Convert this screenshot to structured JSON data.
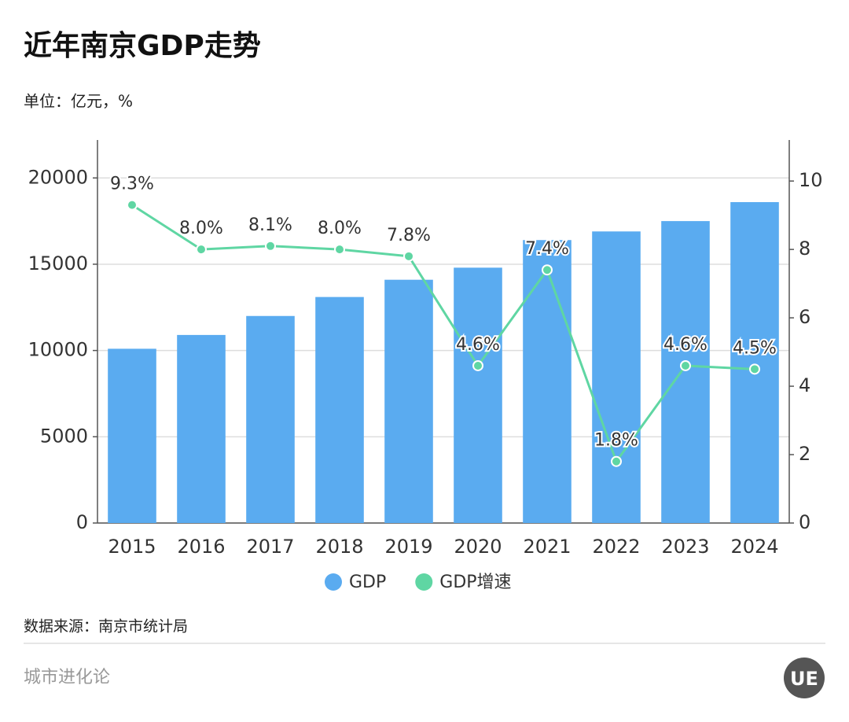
{
  "chart_data": {
    "type": "bar-line",
    "title": "近年南京GDP走势",
    "subtitle": "单位：亿元，%",
    "categories": [
      "2015",
      "2016",
      "2017",
      "2018",
      "2019",
      "2020",
      "2021",
      "2022",
      "2023",
      "2024"
    ],
    "series": [
      {
        "name": "GDP",
        "type": "bar",
        "color": "#5aabf0",
        "values": [
          10100,
          10900,
          12000,
          13100,
          14100,
          14800,
          16400,
          16900,
          17500,
          18600
        ]
      },
      {
        "name": "GDP增速",
        "type": "line",
        "axis": "y2",
        "color": "#5fd6a3",
        "values": [
          9.3,
          8.0,
          8.1,
          8.0,
          7.8,
          4.6,
          7.4,
          1.8,
          4.6,
          4.5
        ],
        "value_labels": [
          "9.3%",
          "8.0%",
          "8.1%",
          "8.0%",
          "7.8%",
          "4.6%",
          "7.4%",
          "1.8%",
          "4.6%",
          "4.5%"
        ]
      }
    ],
    "ylim": [
      0,
      22200
    ],
    "yticks": [
      0,
      5000,
      10000,
      15000,
      20000
    ],
    "y2lim": [
      0,
      11.2
    ],
    "y2ticks": [
      0,
      2,
      4,
      6,
      8,
      10
    ],
    "grid": true,
    "legend": "bottom",
    "source": "数据来源：南京市统计局"
  },
  "footer": {
    "brand": "城市进化论",
    "logo": "UE"
  }
}
